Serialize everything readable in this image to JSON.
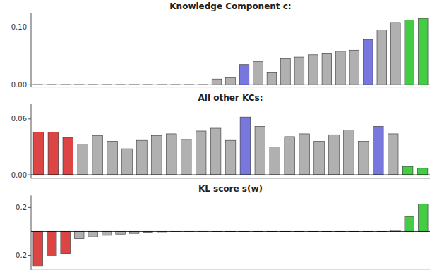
{
  "chart_data": [
    {
      "type": "bar",
      "title": "Knowledge Component c:",
      "values": [
        0.0005,
        0.0005,
        0.0005,
        0.0005,
        0.0005,
        0.0005,
        0.0005,
        0.0005,
        0.0005,
        0.0005,
        0.0005,
        0.0005,
        0.0005,
        0.01,
        0.012,
        0.035,
        0.04,
        0.022,
        0.045,
        0.048,
        0.052,
        0.055,
        0.058,
        0.06,
        0.078,
        0.095,
        0.108,
        0.112,
        0.115
      ],
      "colors": [
        "#b0b0b0",
        "#b0b0b0",
        "#b0b0b0",
        "#b0b0b0",
        "#b0b0b0",
        "#b0b0b0",
        "#b0b0b0",
        "#b0b0b0",
        "#b0b0b0",
        "#b0b0b0",
        "#b0b0b0",
        "#b0b0b0",
        "#b0b0b0",
        "#b0b0b0",
        "#b0b0b0",
        "#7777dd",
        "#b0b0b0",
        "#b0b0b0",
        "#b0b0b0",
        "#b0b0b0",
        "#b0b0b0",
        "#b0b0b0",
        "#b0b0b0",
        "#b0b0b0",
        "#7777dd",
        "#b0b0b0",
        "#b0b0b0",
        "#44cc44",
        "#44cc44"
      ],
      "ylim": [
        -0.004,
        0.125
      ],
      "yticks": [
        {
          "value": 0.0,
          "label": "0.00"
        },
        {
          "value": 0.1,
          "label": "0.10"
        }
      ]
    },
    {
      "type": "bar",
      "title": "All other KCs:",
      "values": [
        0.046,
        0.046,
        0.04,
        0.033,
        0.042,
        0.036,
        0.028,
        0.037,
        0.042,
        0.044,
        0.038,
        0.047,
        0.05,
        0.037,
        0.062,
        0.052,
        0.03,
        0.041,
        0.044,
        0.036,
        0.043,
        0.048,
        0.036,
        0.052,
        0.044,
        0.009,
        0.007
      ],
      "colors": [
        "#dd4444",
        "#dd4444",
        "#dd4444",
        "#b0b0b0",
        "#b0b0b0",
        "#b0b0b0",
        "#b0b0b0",
        "#b0b0b0",
        "#b0b0b0",
        "#b0b0b0",
        "#b0b0b0",
        "#b0b0b0",
        "#b0b0b0",
        "#b0b0b0",
        "#7777dd",
        "#b0b0b0",
        "#b0b0b0",
        "#b0b0b0",
        "#b0b0b0",
        "#b0b0b0",
        "#b0b0b0",
        "#b0b0b0",
        "#b0b0b0",
        "#7777dd",
        "#b0b0b0",
        "#44cc44",
        "#44cc44"
      ],
      "ylim": [
        -0.004,
        0.076
      ],
      "yticks": [
        {
          "value": 0.0,
          "label": "0.00"
        },
        {
          "value": 0.06,
          "label": "0.06"
        }
      ]
    },
    {
      "type": "bar",
      "title": "KL score s(w)",
      "values": [
        -0.29,
        -0.205,
        -0.185,
        -0.06,
        -0.045,
        -0.032,
        -0.022,
        -0.016,
        -0.012,
        -0.009,
        -0.007,
        -0.006,
        -0.005,
        -0.004,
        -0.003,
        -0.003,
        -0.002,
        -0.002,
        -0.001,
        -0.001,
        -0.001,
        -0.001,
        -0.001,
        -0.001,
        -0.001,
        -0.001,
        0.01,
        0.125,
        0.23
      ],
      "colors": [
        "#dd4444",
        "#dd4444",
        "#dd4444",
        "#b0b0b0",
        "#b0b0b0",
        "#b0b0b0",
        "#b0b0b0",
        "#b0b0b0",
        "#b0b0b0",
        "#b0b0b0",
        "#b0b0b0",
        "#b0b0b0",
        "#b0b0b0",
        "#b0b0b0",
        "#b0b0b0",
        "#b0b0b0",
        "#b0b0b0",
        "#b0b0b0",
        "#b0b0b0",
        "#b0b0b0",
        "#b0b0b0",
        "#b0b0b0",
        "#b0b0b0",
        "#b0b0b0",
        "#b0b0b0",
        "#b0b0b0",
        "#b0b0b0",
        "#44cc44",
        "#44cc44"
      ],
      "ylim": [
        -0.32,
        0.3
      ],
      "yticks": [
        -0.2,
        0.2
      ]
    }
  ]
}
